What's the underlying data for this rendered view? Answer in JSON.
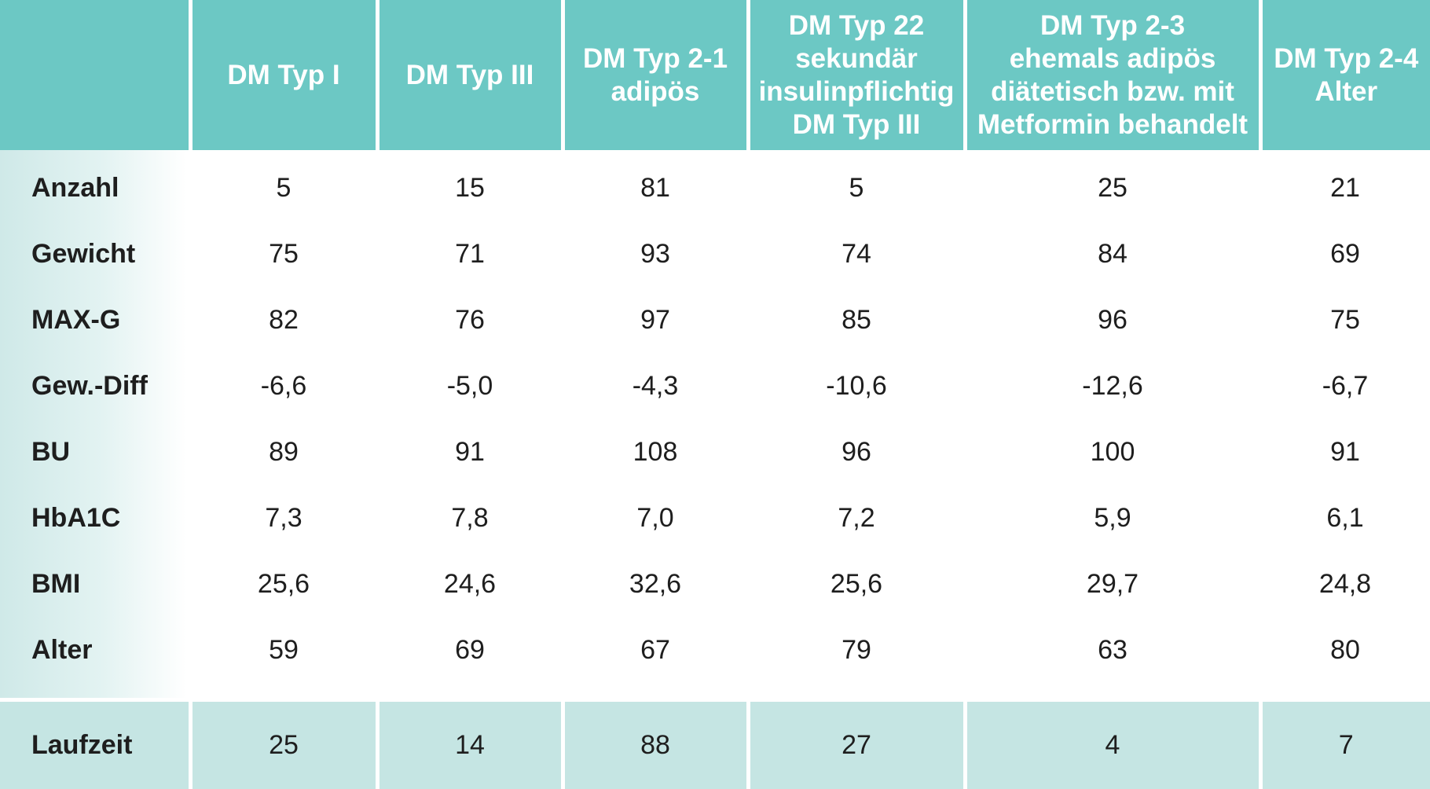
{
  "columns": [
    "",
    "DM Typ I",
    "DM Typ III",
    "DM Typ 2-1\nadipös",
    "DM Typ 22\nsekundär\ninsulinpflichtig\nDM Typ III",
    "DM Typ 2-3\nehemals adipös\ndiätetisch bzw. mit\nMetformin behandelt",
    "DM Typ 2-4\nAlter"
  ],
  "rows": [
    {
      "label": "Anzahl",
      "values": [
        "5",
        "15",
        "81",
        "5",
        "25",
        "21"
      ]
    },
    {
      "label": "Gewicht",
      "values": [
        "75",
        "71",
        "93",
        "74",
        "84",
        "69"
      ]
    },
    {
      "label": "MAX-G",
      "values": [
        "82",
        "76",
        "97",
        "85",
        "96",
        "75"
      ]
    },
    {
      "label": "Gew.-Diff",
      "values": [
        "-6,6",
        "-5,0",
        "-4,3",
        "-10,6",
        "-12,6",
        "-6,7"
      ]
    },
    {
      "label": "BU",
      "values": [
        "89",
        "91",
        "108",
        "96",
        "100",
        "91"
      ]
    },
    {
      "label": "HbA1C",
      "values": [
        "7,3",
        "7,8",
        "7,0",
        "7,2",
        "5,9",
        "6,1"
      ]
    },
    {
      "label": "BMI",
      "values": [
        "25,6",
        "24,6",
        "32,6",
        "25,6",
        "29,7",
        "24,8"
      ]
    },
    {
      "label": "Alter",
      "values": [
        "59",
        "69",
        "67",
        "79",
        "63",
        "80"
      ]
    }
  ],
  "footer": {
    "label": "Laufzeit",
    "values": [
      "25",
      "14",
      "88",
      "27",
      "4",
      "7"
    ]
  },
  "colors": {
    "header_bg": "#6cc8c4",
    "footer_bg": "#c5e5e3",
    "label_strip": "#d6edec"
  }
}
